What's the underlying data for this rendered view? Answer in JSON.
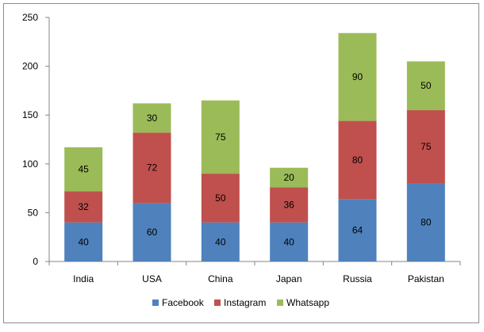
{
  "chart_data": {
    "type": "bar",
    "stacked": true,
    "categories": [
      "India",
      "USA",
      "China",
      "Japan",
      "Russia",
      "Pakistan"
    ],
    "series": [
      {
        "name": "Facebook",
        "color": "#4f81bd",
        "values": [
          40,
          60,
          40,
          40,
          64,
          80
        ]
      },
      {
        "name": "Instagram",
        "color": "#c0504d",
        "values": [
          32,
          72,
          50,
          36,
          80,
          75
        ]
      },
      {
        "name": "Whatsapp",
        "color": "#9bbb59",
        "values": [
          45,
          30,
          75,
          20,
          90,
          50
        ]
      }
    ],
    "ylim": [
      0,
      250
    ],
    "yticks": [
      0,
      50,
      100,
      150,
      200,
      250
    ],
    "grid": false,
    "legend_position": "bottom"
  }
}
